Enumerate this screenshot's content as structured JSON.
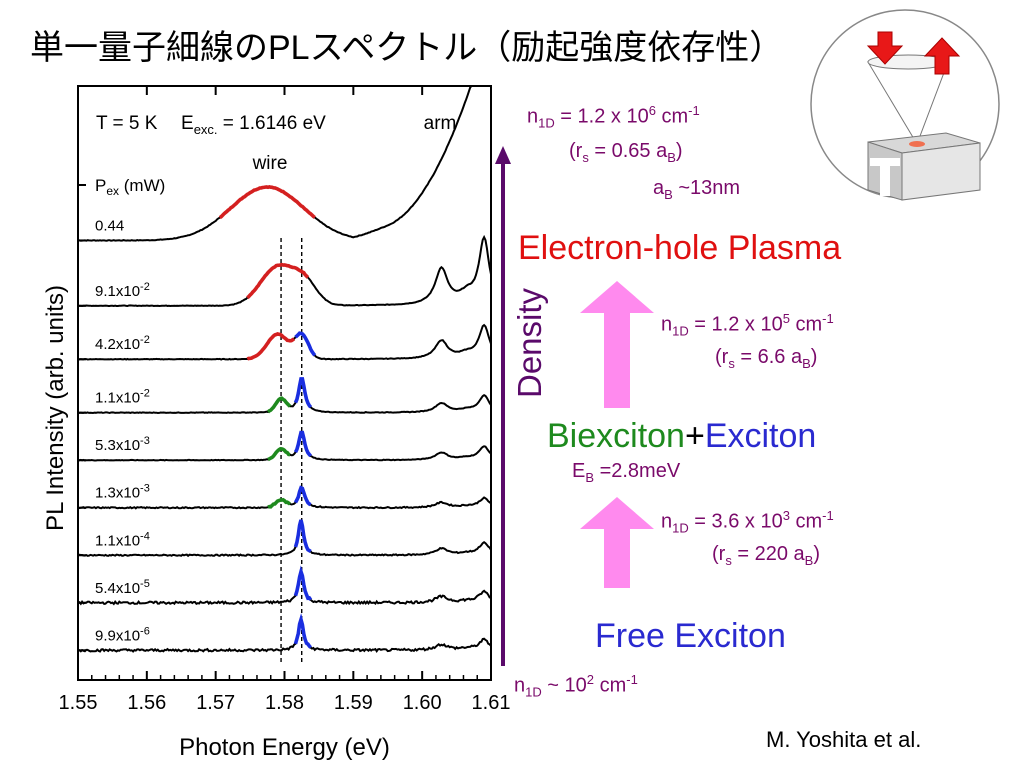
{
  "title": "単一量子細線のPLスペクトル（励起強度依存性）",
  "chart_data": {
    "type": "line",
    "xlabel": "Photon Energy (eV)",
    "ylabel": "PL Intensity (arb. units)",
    "xlim": [
      1.55,
      1.61
    ],
    "xticks": [
      "1.55",
      "1.56",
      "1.57",
      "1.58",
      "1.59",
      "1.60",
      "1.61"
    ],
    "header_text": {
      "temp": "T = 5 K",
      "eexc_main": "E",
      "eexc_sub": "exc.",
      "eexc_val": "= 1.6146 eV"
    },
    "pex_label": {
      "main": "P",
      "sub": "ex",
      "unit": "(mW)"
    },
    "wire_label": "wire",
    "arm_label": "arm",
    "ref_lines_ev": [
      1.5795,
      1.5825
    ],
    "series": [
      {
        "label_base": "0.44",
        "label_exp": "",
        "offset": 0.74,
        "peak_type": "plasma"
      },
      {
        "label_base": "9.1x10",
        "label_exp": "-2",
        "offset": 0.63,
        "peak_type": "plasma-split"
      },
      {
        "label_base": "4.2x10",
        "label_exp": "-2",
        "offset": 0.54,
        "peak_type": "mixed"
      },
      {
        "label_base": "1.1x10",
        "label_exp": "-2",
        "offset": 0.45,
        "peak_type": "bx-x"
      },
      {
        "label_base": "5.3x10",
        "label_exp": "-3",
        "offset": 0.37,
        "peak_type": "bx-x"
      },
      {
        "label_base": "1.3x10",
        "label_exp": "-3",
        "offset": 0.29,
        "peak_type": "bx-x"
      },
      {
        "label_base": "1.1x10",
        "label_exp": "-4",
        "offset": 0.21,
        "peak_type": "x"
      },
      {
        "label_base": "5.4x10",
        "label_exp": "-5",
        "offset": 0.13,
        "peak_type": "x"
      },
      {
        "label_base": "9.9x10",
        "label_exp": "-6",
        "offset": 0.05,
        "peak_type": "x"
      }
    ],
    "colors": {
      "plasma": "#d42020",
      "biexciton": "#1e8a1e",
      "exciton": "#1a2ee0",
      "line": "#000000"
    }
  },
  "diagram": {
    "axis_label": "Density",
    "top_density": {
      "prefix": "n",
      "sub": "1D",
      "mid": " = 1.2 x 10",
      "sup": "6",
      "unit": " cm",
      "unit_sup": "-1"
    },
    "top_rs": {
      "open": "(r",
      "sub": "s",
      "mid": " = 0.65 a",
      "sub2": "B",
      "close": ")"
    },
    "ab": {
      "main": "a",
      "sub": "B",
      "rest": " ~13nm"
    },
    "plasma": "Electron-hole Plasma",
    "mid_density": {
      "prefix": "n",
      "sub": "1D",
      "mid": " = 1.2 x 10",
      "sup": "5",
      "unit": " cm",
      "unit_sup": "-1"
    },
    "mid_rs": {
      "open": "(r",
      "sub": "s",
      "mid": " = 6.6 a",
      "sub2": "B",
      "close": ")"
    },
    "biexciton": "Biexciton",
    "plus": "+",
    "exciton": "Exciton",
    "eb": {
      "main": "E",
      "sub": "B",
      "rest": " =2.8meV"
    },
    "low_density": {
      "prefix": "n",
      "sub": "1D",
      "mid": " = 3.6 x 10",
      "sup": "3",
      "unit": " cm",
      "unit_sup": "-1"
    },
    "low_rs": {
      "open": "(r",
      "sub": "s",
      "mid": " = 220 a",
      "sub2": "B",
      "close": ")"
    },
    "free_exciton": "Free Exciton",
    "bottom_density": {
      "prefix": "n",
      "sub": "1D",
      "mid": " ~ 10",
      "sup": "2",
      "unit": " cm",
      "unit_sup": "-1"
    },
    "colors": {
      "plasma": "#e01010",
      "biexciton": "#1e8a1e",
      "exciton": "#2a2ad0",
      "density_axis": "#5a0a6a",
      "pink_arrow": "#ff8aee",
      "info": "#7a0a6a"
    }
  },
  "citation": "M. Yoshita et al."
}
